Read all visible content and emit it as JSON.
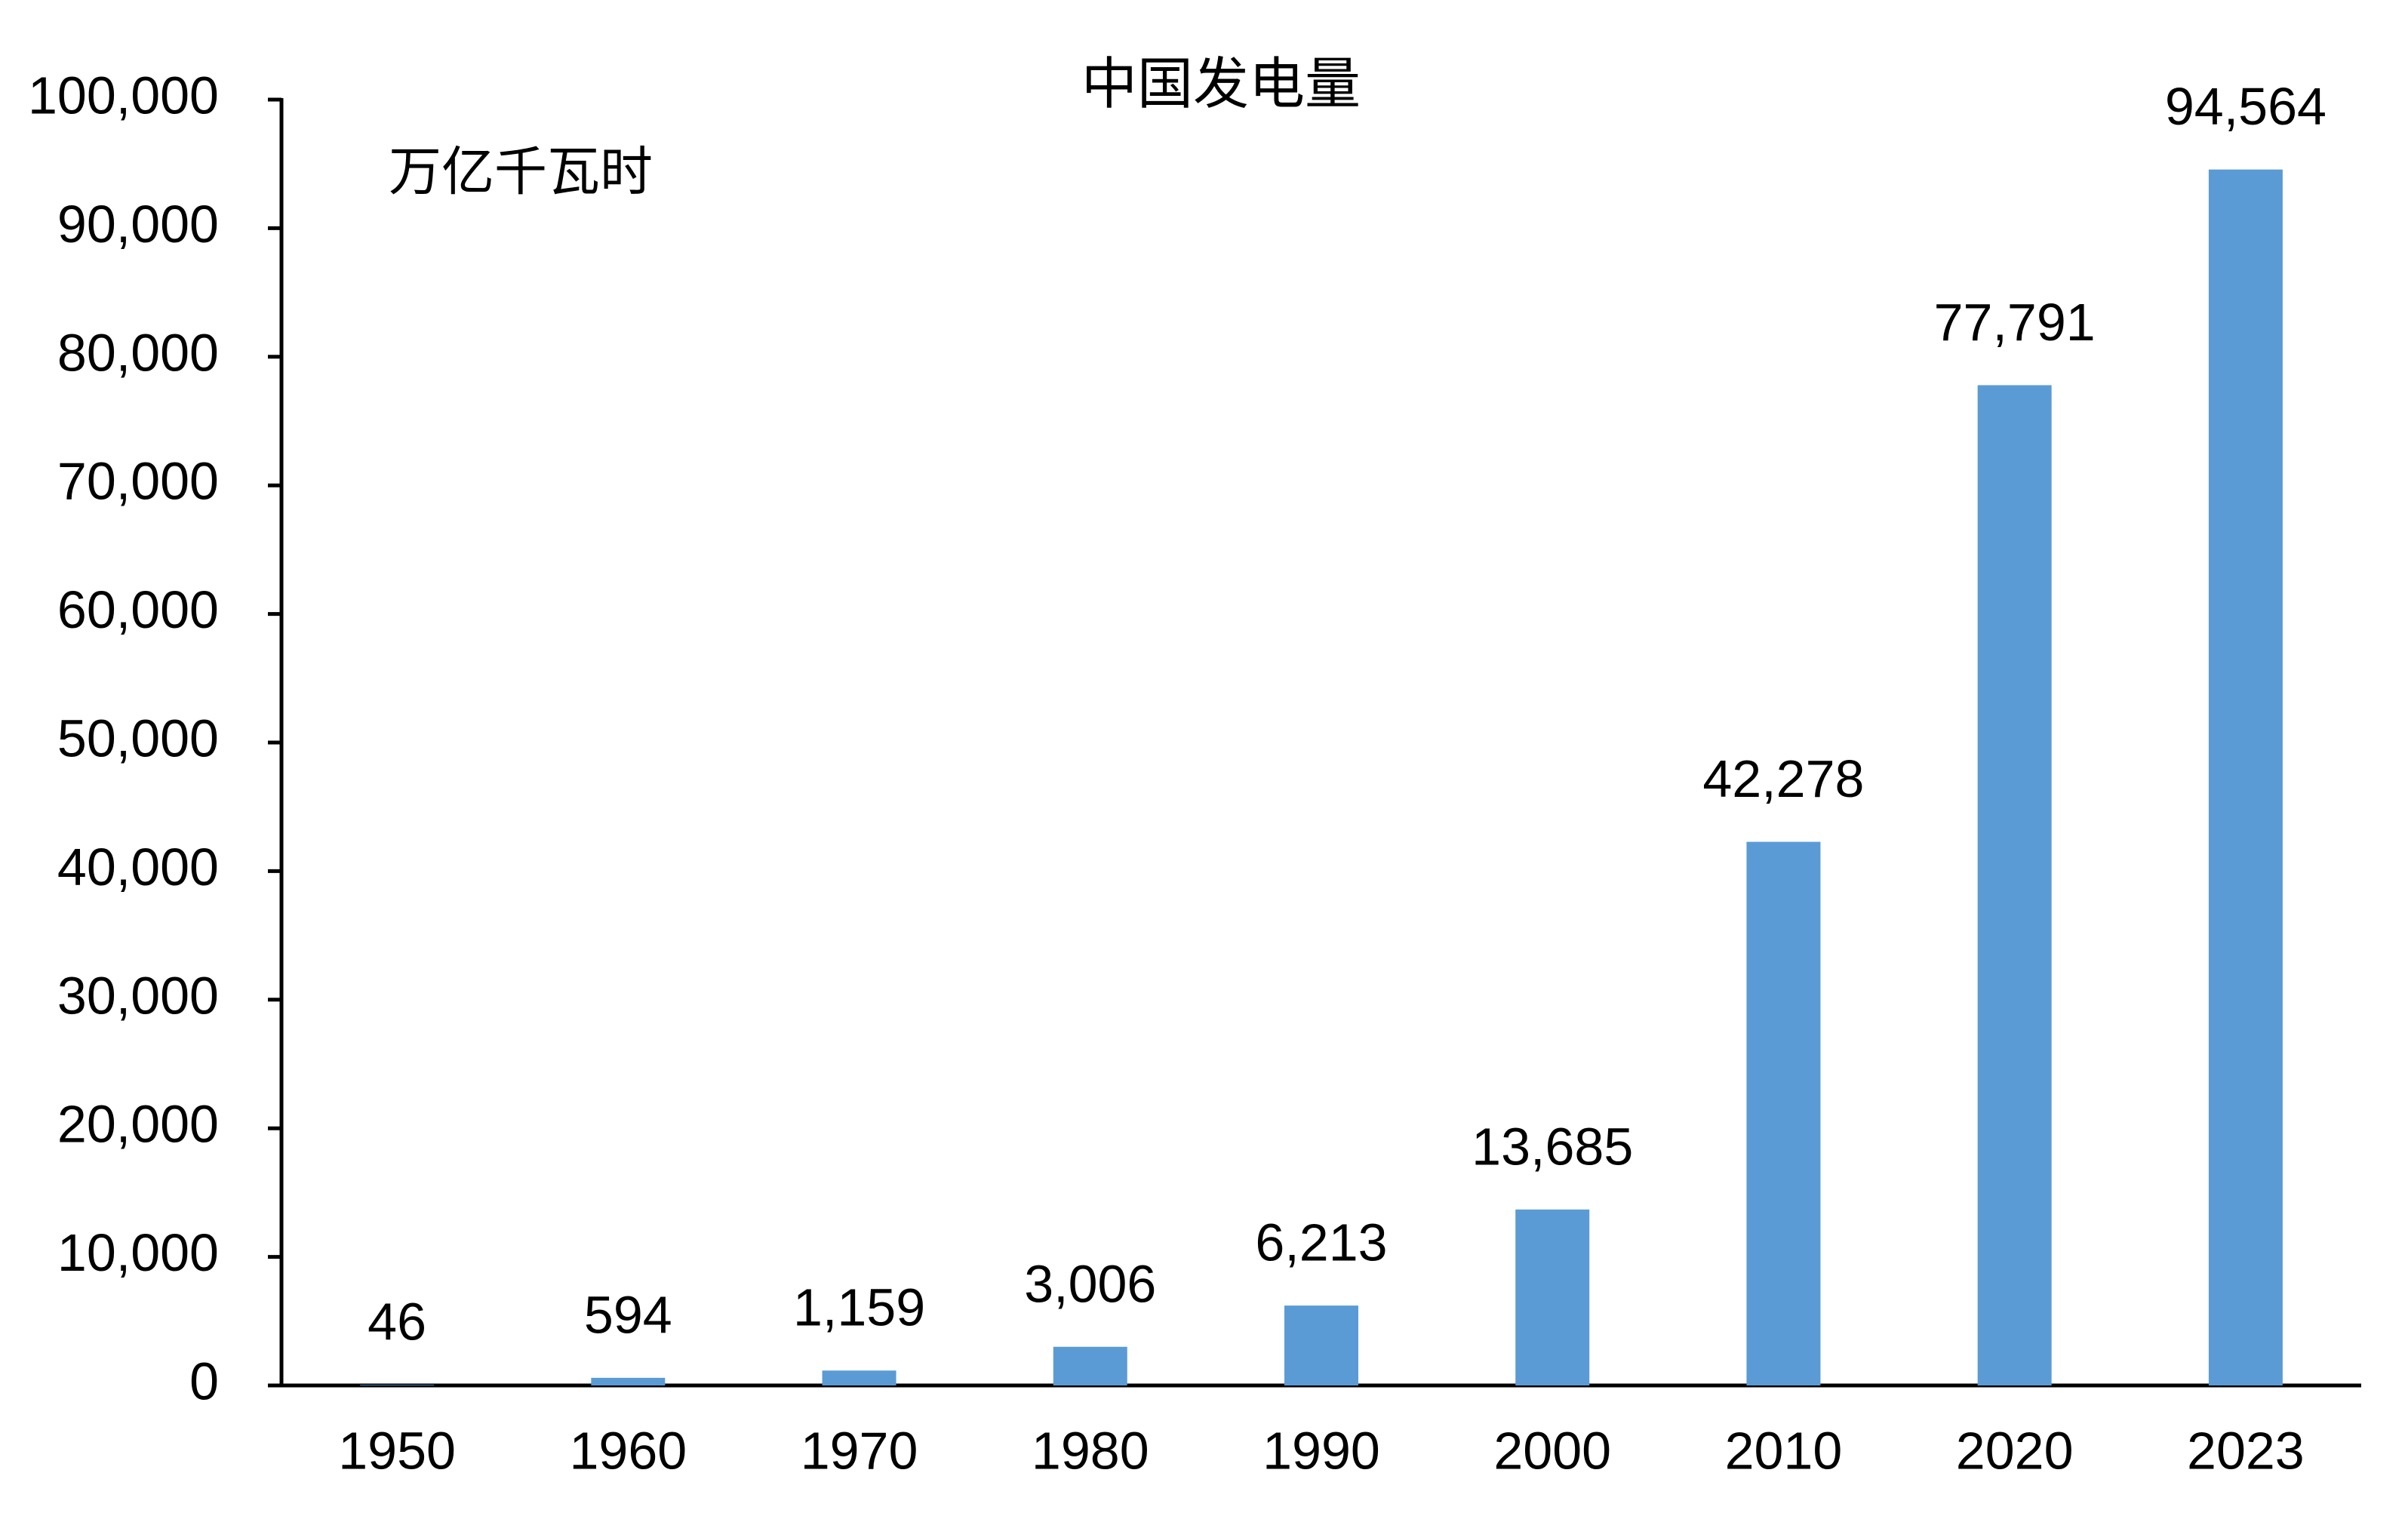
{
  "chart_data": {
    "type": "bar",
    "title": "中国发电量",
    "ylabel": "万亿千瓦时",
    "categories": [
      "1950",
      "1960",
      "1970",
      "1980",
      "1990",
      "2000",
      "2010",
      "2020",
      "2023"
    ],
    "values": [
      46,
      594,
      1159,
      3006,
      6213,
      13685,
      42278,
      77791,
      94564
    ],
    "value_labels": [
      "46",
      "594",
      "1,159",
      "3,006",
      "6,213",
      "13,685",
      "42,278",
      "77,791",
      "94,564"
    ],
    "color": "#5b9bd5",
    "ylim": [
      0,
      100000
    ],
    "yticks": [
      0,
      {
        "value": 10000,
        "label": "10,000"
      },
      {
        "value": 20000,
        "label": "20,000"
      },
      {
        "value": 30000,
        "label": "30,000"
      },
      {
        "value": 40000,
        "label": "40,000"
      },
      {
        "value": 50000,
        "label": "50,000"
      },
      {
        "value": 60000,
        "label": "60,000"
      },
      {
        "value": 70000,
        "label": "70,000"
      },
      {
        "value": 80000,
        "label": "80,000"
      },
      {
        "value": 90000,
        "label": "90,000"
      },
      {
        "value": 100000,
        "label": "100,000"
      }
    ],
    "grid": false
  }
}
